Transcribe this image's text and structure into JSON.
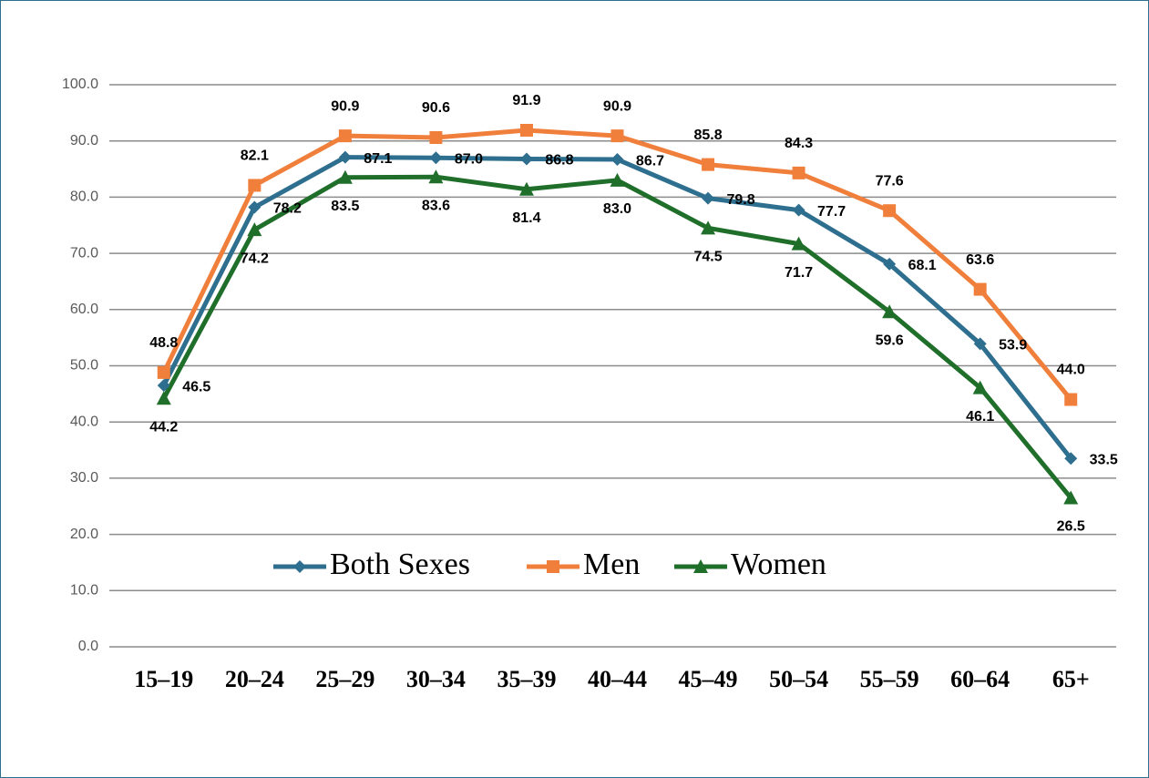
{
  "chart_data": {
    "type": "line",
    "categories": [
      "15–19",
      "20–24",
      "25–29",
      "30–34",
      "35–39",
      "40–44",
      "45–49",
      "50–54",
      "55–59",
      "60–64",
      "65+"
    ],
    "series": [
      {
        "name": "Both Sexes",
        "color": "#2e6e8e",
        "marker": "diamond",
        "values": [
          46.5,
          78.2,
          87.1,
          87.0,
          86.8,
          86.7,
          79.8,
          77.7,
          68.1,
          53.9,
          33.5
        ],
        "value_labels": [
          "46.5",
          "78.2",
          "87.1",
          "87.0",
          "86.8",
          "86.7",
          "79.8",
          "77.7",
          "68.1",
          "53.9",
          "33.5"
        ]
      },
      {
        "name": "Men",
        "color": "#f07f3c",
        "marker": "square",
        "values": [
          48.8,
          82.1,
          90.9,
          90.6,
          91.9,
          90.9,
          85.8,
          84.3,
          77.6,
          63.6,
          44.0
        ],
        "value_labels": [
          "48.8",
          "82.1",
          "90.9",
          "90.6",
          "91.9",
          "90.9",
          "85.8",
          "84.3",
          "77.6",
          "63.6",
          "44.0"
        ]
      },
      {
        "name": "Women",
        "color": "#1f6e2a",
        "marker": "triangle",
        "values": [
          44.2,
          74.2,
          83.5,
          83.6,
          81.4,
          83.0,
          74.5,
          71.7,
          59.6,
          46.1,
          26.5
        ],
        "value_labels": [
          "44.2",
          "74.2",
          "83.5",
          "83.6",
          "81.4",
          "83.0",
          "74.5",
          "71.7",
          "59.6",
          "46.1",
          "26.5"
        ]
      }
    ],
    "ylim": [
      0,
      100
    ],
    "yticks": [
      {
        "value": 0,
        "label": "0.0"
      },
      {
        "value": 10,
        "label": "10.0"
      },
      {
        "value": 20,
        "label": "20.0"
      },
      {
        "value": 30,
        "label": "30.0"
      },
      {
        "value": 40,
        "label": "40.0"
      },
      {
        "value": 50,
        "label": "50.0"
      },
      {
        "value": 60,
        "label": "60.0"
      },
      {
        "value": 70,
        "label": "70.0"
      },
      {
        "value": 80,
        "label": "80.0"
      },
      {
        "value": 90,
        "label": "90.0"
      },
      {
        "value": 100,
        "label": "100.0"
      }
    ],
    "grid": true,
    "legend": "inside-bottom"
  }
}
